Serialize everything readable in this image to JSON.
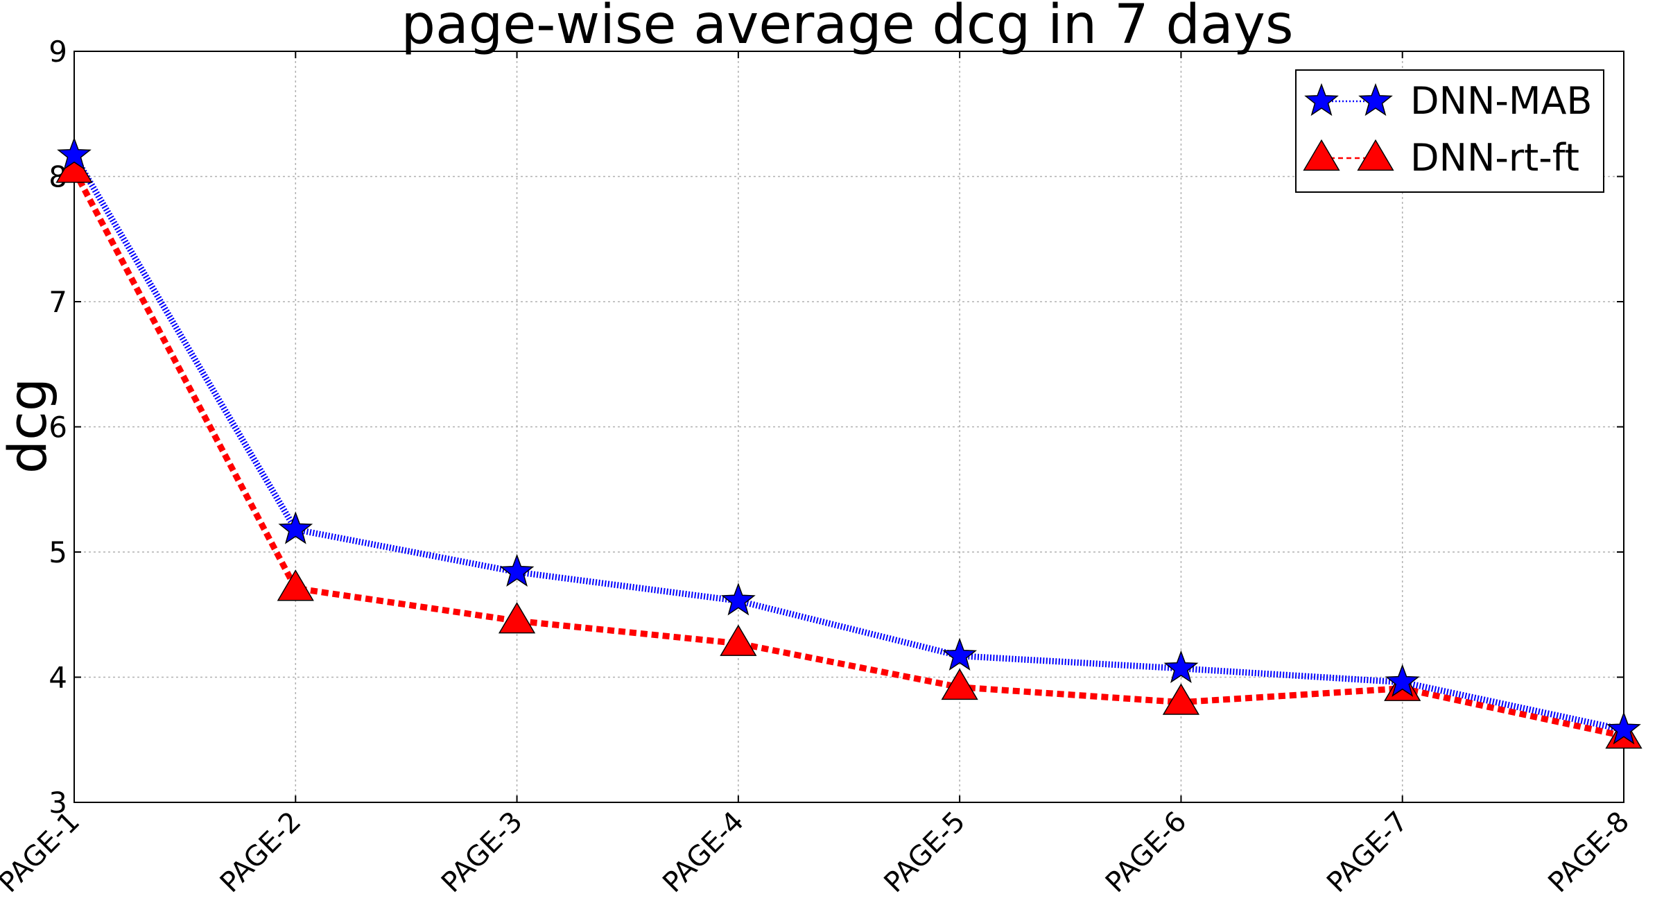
{
  "chart_data": {
    "type": "line",
    "title": "page-wise average dcg in 7 days",
    "xlabel": "",
    "ylabel": "dcg",
    "categories": [
      "PAGE-1",
      "PAGE-2",
      "PAGE-3",
      "PAGE-4",
      "PAGE-5",
      "PAGE-6",
      "PAGE-7",
      "PAGE-8"
    ],
    "ylim": [
      3,
      9
    ],
    "yticks": [
      "3",
      "4",
      "5",
      "6",
      "7",
      "8",
      "9"
    ],
    "grid": true,
    "legend_position": "top-right",
    "series": [
      {
        "name": "DNN-MAB",
        "marker": "star",
        "line_style": "dotted",
        "color": "#0000ff",
        "values": [
          8.17,
          5.18,
          4.84,
          4.61,
          4.17,
          4.07,
          3.96,
          3.58
        ]
      },
      {
        "name": "DNN-rt-ft",
        "marker": "triangle",
        "line_style": "dashed",
        "color": "#ff0000",
        "values": [
          8.05,
          4.71,
          4.45,
          4.27,
          3.92,
          3.8,
          3.91,
          3.53
        ]
      }
    ]
  }
}
